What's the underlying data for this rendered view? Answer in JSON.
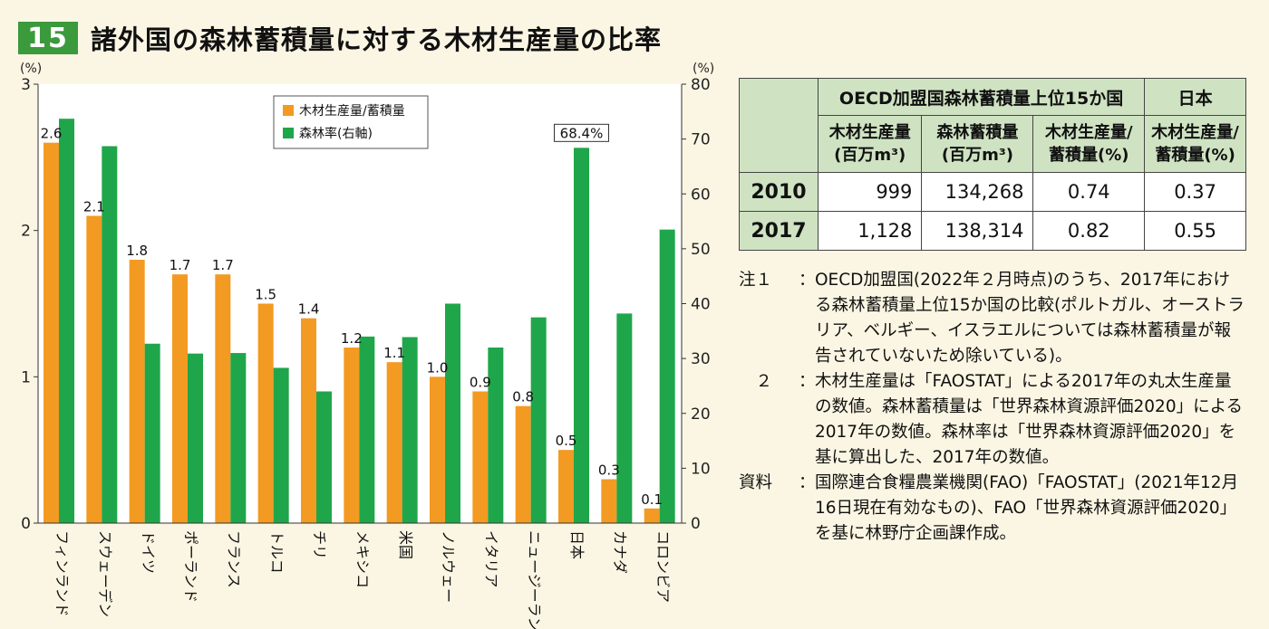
{
  "figure": {
    "number": "15",
    "title": "諸外国の森林蓄積量に対する木材生産量の比率"
  },
  "chart_data": {
    "type": "bar",
    "left_axis": {
      "unit": "(%)",
      "ylim": [
        0,
        3
      ],
      "ticks": [
        "0",
        "1",
        "2",
        "3"
      ]
    },
    "right_axis": {
      "unit": "(%)",
      "ylim": [
        0,
        80
      ],
      "ticks": [
        "0",
        "10",
        "20",
        "30",
        "40",
        "50",
        "60",
        "70",
        "80"
      ]
    },
    "categories": [
      "フィンランド",
      "スウェーデン",
      "ドイツ",
      "ポーランド",
      "フランス",
      "トルコ",
      "チリ",
      "メキシコ",
      "米国",
      "ノルウェー",
      "イタリア",
      "ニュージーランド",
      "日本",
      "カナダ",
      "コロンビア"
    ],
    "series": [
      {
        "name": "木材生産量/蓄積量",
        "axis": "left",
        "color": "#f39a22",
        "values": [
          2.6,
          2.1,
          1.8,
          1.7,
          1.7,
          1.5,
          1.4,
          1.2,
          1.1,
          1.0,
          0.9,
          0.8,
          0.5,
          0.3,
          0.1
        ],
        "labels": [
          "2.6",
          "2.1",
          "1.8",
          "1.7",
          "1.7",
          "1.5",
          "1.4",
          "1.2",
          "1.1",
          "1.0",
          "0.9",
          "0.8",
          "0.5",
          "0.3",
          "0.1"
        ]
      },
      {
        "name": "森林率(右軸)",
        "axis": "right",
        "color": "#1fa64a",
        "values": [
          73.7,
          68.7,
          32.7,
          30.9,
          31.0,
          28.3,
          24.0,
          34.0,
          33.9,
          40.0,
          32.0,
          37.5,
          68.4,
          38.2,
          53.5
        ]
      }
    ],
    "annotation": "68.4%",
    "legend": "top-center"
  },
  "table": {
    "group_header": "OECD加盟国森林蓄積量上位15か国",
    "japan_header": "日本",
    "col1_l1": "木材生産量",
    "col1_l2": "(百万m³)",
    "col2_l1": "森林蓄積量",
    "col2_l2": "(百万m³)",
    "col3_l1": "木材生産量/",
    "col3_l2": "蓄積量(%)",
    "col4_l1": "木材生産量/",
    "col4_l2": "蓄積量(%)",
    "rows": [
      {
        "year": "2010",
        "prod": "999",
        "stock": "134,268",
        "ratio": "0.74",
        "japan": "0.37"
      },
      {
        "year": "2017",
        "prod": "1,128",
        "stock": "138,314",
        "ratio": "0.82",
        "japan": "0.55"
      }
    ]
  },
  "notes": [
    {
      "key": "注１",
      "text": "OECD加盟国(2022年２月時点)のうち、2017年における森林蓄積量上位15か国の比較(ポルトガル、オーストラリア、ベルギー、イスラエルについては森林蓄積量が報告されていないため除いている)。"
    },
    {
      "key": "　２",
      "text": "木材生産量は「FAOSTAT」による2017年の丸太生産量の数値。森林蓄積量は「世界森林資源評価2020」による2017年の数値。森林率は「世界森林資源評価2020」を基に算出した、2017年の数値。"
    },
    {
      "key": "資料",
      "text": "国際連合食糧農業機関(FAO)「FAOSTAT」(2021年12月16日現在有効なもの)、FAO「世界森林資源評価2020」を基に林野庁企画課作成。"
    }
  ]
}
